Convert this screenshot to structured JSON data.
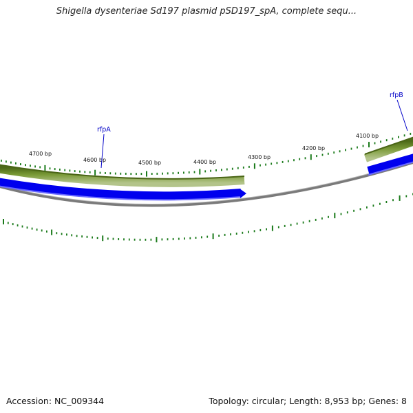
{
  "title": "Shigella dysenteriae Sd197 plasmid pSD197_spA, complete sequ...",
  "footer": {
    "accession": "Accession: NC_009344",
    "summary": "Topology: circular; Length: 8,953 bp; Genes: 8"
  },
  "map": {
    "tick_labels": [
      "4700 bp",
      "4600 bp",
      "4500 bp",
      "4400 bp",
      "4300 bp",
      "4200 bp",
      "4100 bp"
    ],
    "genes": [
      {
        "name": "rfpA",
        "strand": "reverse"
      },
      {
        "name": "rfpB",
        "strand": "reverse"
      }
    ],
    "colors": {
      "gene_feature": "#6b8a2a",
      "cds_feature": "#0000ee",
      "backbone": "#808080",
      "tick": "#1a7a1a",
      "label": "#0000c8"
    }
  }
}
